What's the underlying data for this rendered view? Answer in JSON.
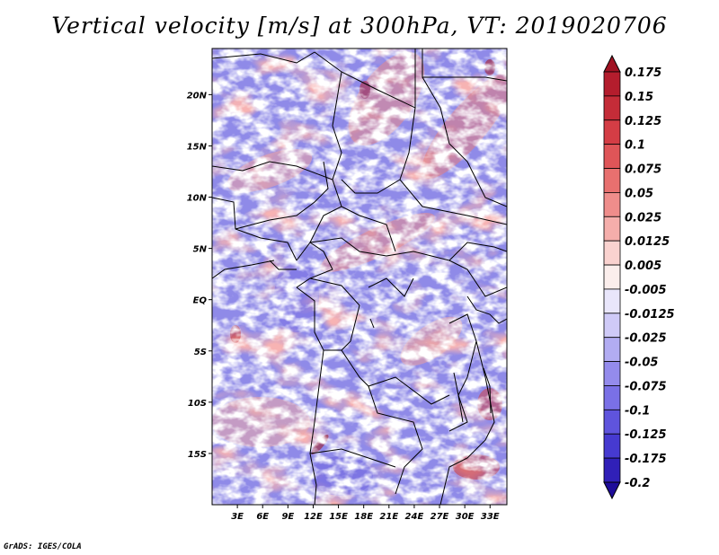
{
  "title": "Vertical velocity [m/s] at 300hPa, VT: 2019020706",
  "footer": "GrADS: IGES/COLA",
  "map": {
    "lat_range": [
      -20,
      24.5
    ],
    "lon_range": [
      0,
      35
    ],
    "lat_ticks": [
      {
        "value": 20,
        "label": "20N"
      },
      {
        "value": 15,
        "label": "15N"
      },
      {
        "value": 10,
        "label": "10N"
      },
      {
        "value": 5,
        "label": "5N"
      },
      {
        "value": 0,
        "label": "EQ"
      },
      {
        "value": -5,
        "label": "5S"
      },
      {
        "value": -10,
        "label": "10S"
      },
      {
        "value": -15,
        "label": "15S"
      }
    ],
    "lon_ticks": [
      {
        "value": 3,
        "label": "3E"
      },
      {
        "value": 6,
        "label": "6E"
      },
      {
        "value": 9,
        "label": "9E"
      },
      {
        "value": 12,
        "label": "12E"
      },
      {
        "value": 15,
        "label": "15E"
      },
      {
        "value": 18,
        "label": "18E"
      },
      {
        "value": 21,
        "label": "21E"
      },
      {
        "value": 24,
        "label": "24E"
      },
      {
        "value": 27,
        "label": "27E"
      },
      {
        "value": 30,
        "label": "30E"
      },
      {
        "value": 33,
        "label": "33E"
      }
    ]
  },
  "colorbar": {
    "levels": [
      "0.175",
      "0.15",
      "0.125",
      "0.1",
      "0.075",
      "0.05",
      "0.025",
      "0.0125",
      "0.005",
      "-0.005",
      "-0.0125",
      "-0.025",
      "-0.05",
      "-0.075",
      "-0.1",
      "-0.125",
      "-0.175",
      "-0.2"
    ],
    "colors": [
      "#a01222",
      "#b41d2d",
      "#c42c38",
      "#d43d45",
      "#df5558",
      "#e8706f",
      "#ef8d8b",
      "#f5aeab",
      "#fad2cf",
      "#fbeeec",
      "#e9e6fb",
      "#cfcaf7",
      "#b2acf2",
      "#948bec",
      "#7a70e6",
      "#5f54dd",
      "#463ad0",
      "#3020b8",
      "#1e0c9a"
    ]
  }
}
